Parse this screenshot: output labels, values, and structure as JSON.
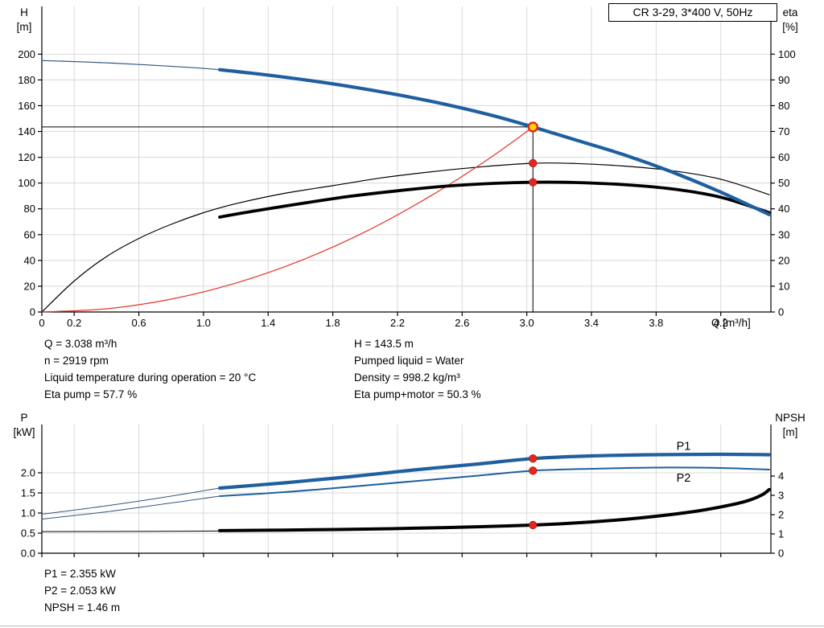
{
  "title_box": "CR 3-29, 3*400 V, 50Hz",
  "info_top": {
    "left": [
      "Q = 3.038 m³/h",
      "n = 2919 rpm",
      "Liquid temperature during operation = 20 °C",
      "Eta pump = 57.7 %"
    ],
    "right": [
      "H = 143.5 m",
      "Pumped liquid = Water",
      "Density = 998.2 kg/m³",
      "Eta pump+motor = 50.3 %"
    ]
  },
  "info_bottom": [
    "P1 = 2.355 kW",
    "P2 = 2.053 kW",
    "NPSH = 1.46 m"
  ],
  "colors": {
    "blue": "#1f5fa0",
    "navy_thin": "#33557f",
    "black": "#000000",
    "red": "#e5342b",
    "marker_red": "#e8251d",
    "marker_yellow": "#ffd800",
    "grid": "#d9d9d9",
    "axis": "#000000"
  },
  "chart_data": [
    {
      "type": "line",
      "title": "CR 3-29, 3*400 V, 50Hz",
      "x_axis": {
        "label": "Q [m³/h]",
        "min": 0,
        "max": 4.51,
        "ticks": [
          0,
          0.2,
          0.6,
          1.0,
          1.4,
          1.8,
          2.2,
          2.6,
          3.0,
          3.4,
          3.8,
          4.2
        ],
        "labels": [
          "0",
          "0.2",
          "0.6",
          "1.0",
          "1.4",
          "1.8",
          "2.2",
          "2.6",
          "3.0",
          "3.4",
          "3.8",
          "4.2"
        ]
      },
      "y_left": {
        "label": "H [m]",
        "min": 0,
        "max": 237,
        "ticks": [
          0,
          20,
          40,
          60,
          80,
          100,
          120,
          140,
          160,
          180,
          200
        ],
        "labels": [
          "0",
          "20",
          "40",
          "60",
          "80",
          "100",
          "120",
          "140",
          "160",
          "180",
          "200"
        ]
      },
      "y_right": {
        "label": "eta [%]",
        "min": 0,
        "max": 118.5,
        "ticks": [
          0,
          10,
          20,
          30,
          40,
          50,
          60,
          70,
          80,
          90,
          100
        ],
        "labels": [
          "0",
          "10",
          "20",
          "30",
          "40",
          "50",
          "60",
          "70",
          "80",
          "90",
          "100"
        ]
      },
      "crosshair": {
        "q": 3.038,
        "v": 143.5
      },
      "series": [
        {
          "name": "head-curve-full",
          "axis": "left",
          "color": "navy_thin",
          "width": 1.2,
          "points": [
            [
              0,
              195
            ],
            [
              0.3,
              193.8
            ],
            [
              0.6,
              192
            ],
            [
              0.9,
              189.8
            ],
            [
              1.1,
              187.9
            ],
            [
              1.3,
              185.2
            ],
            [
              1.6,
              180.5
            ],
            [
              1.9,
              175
            ],
            [
              2.2,
              168.5
            ],
            [
              2.5,
              161
            ],
            [
              2.8,
              152
            ],
            [
              3.038,
              143.5
            ],
            [
              3.3,
              133.5
            ],
            [
              3.6,
              122
            ],
            [
              3.9,
              108.5
            ],
            [
              4.2,
              93
            ],
            [
              4.5,
              75.5
            ]
          ]
        },
        {
          "name": "eta-pump-curve",
          "axis": "right",
          "color": "black",
          "width": 1.2,
          "points": [
            [
              0,
              0
            ],
            [
              0.2,
              12
            ],
            [
              0.4,
              21.5
            ],
            [
              0.6,
              28.5
            ],
            [
              0.8,
              34
            ],
            [
              1,
              38.5
            ],
            [
              1.2,
              42
            ],
            [
              1.5,
              46
            ],
            [
              1.8,
              49
            ],
            [
              2.1,
              52
            ],
            [
              2.4,
              54.3
            ],
            [
              2.7,
              56.2
            ],
            [
              3.038,
              57.7
            ],
            [
              3.3,
              57.6
            ],
            [
              3.6,
              56.6
            ],
            [
              3.9,
              54.8
            ],
            [
              4.2,
              51.5
            ],
            [
              4.5,
              45.5
            ]
          ]
        },
        {
          "name": "system-resistance-curve",
          "axis": "left",
          "color": "red",
          "width": 1.2,
          "points": [
            [
              0,
              0
            ],
            [
              0.4,
              2.5
            ],
            [
              0.8,
              10
            ],
            [
              1.2,
              22.4
            ],
            [
              1.6,
              39.8
            ],
            [
              2,
              62.2
            ],
            [
              2.4,
              89.6
            ],
            [
              2.7,
              113.4
            ],
            [
              2.9,
              130.8
            ],
            [
              3.038,
              143.5
            ]
          ]
        },
        {
          "name": "eta-pump-motor-curve",
          "axis": "right",
          "color": "black",
          "width": 3.8,
          "points": [
            [
              1.1,
              36.8
            ],
            [
              1.3,
              39
            ],
            [
              1.6,
              42
            ],
            [
              1.9,
              44.8
            ],
            [
              2.2,
              47
            ],
            [
              2.5,
              48.8
            ],
            [
              2.8,
              49.9
            ],
            [
              3.038,
              50.3
            ],
            [
              3.3,
              50.2
            ],
            [
              3.6,
              49.4
            ],
            [
              3.9,
              47.7
            ],
            [
              4.2,
              44.5
            ],
            [
              4.5,
              38.5
            ]
          ]
        },
        {
          "name": "head-curve-duty-range",
          "axis": "left",
          "color": "blue",
          "width": 4.2,
          "points": [
            [
              1.1,
              187.9
            ],
            [
              1.3,
              185.2
            ],
            [
              1.6,
              180.5
            ],
            [
              1.9,
              175
            ],
            [
              2.2,
              168.5
            ],
            [
              2.5,
              161
            ],
            [
              2.8,
              152
            ],
            [
              3.038,
              143.5
            ],
            [
              3.3,
              133.5
            ],
            [
              3.6,
              122
            ],
            [
              3.9,
              108.5
            ],
            [
              4.2,
              93
            ],
            [
              4.5,
              75.5
            ]
          ]
        }
      ],
      "markers": [
        {
          "name": "duty-point",
          "axis": "left",
          "q": 3.038,
          "v": 143.5,
          "style": "yellow"
        },
        {
          "name": "eta-pump-point",
          "axis": "right",
          "q": 3.038,
          "v": 57.7,
          "style": "red"
        },
        {
          "name": "eta-pump-motor-point",
          "axis": "right",
          "q": 3.038,
          "v": 50.3,
          "style": "red"
        }
      ],
      "annotations": []
    },
    {
      "type": "line",
      "title": "",
      "x_axis": {
        "label": "",
        "min": 0,
        "max": 4.51,
        "ticks": [
          0,
          0.2,
          0.6,
          1.0,
          1.4,
          1.8,
          2.2,
          2.6,
          3.0,
          3.4,
          3.8,
          4.2
        ],
        "labels": []
      },
      "y_left": {
        "label": "P [kW]",
        "min": 0,
        "max": 3.2,
        "ticks": [
          0,
          0.5,
          1.0,
          1.5,
          2.0
        ],
        "labels": [
          "0.0",
          "0.5",
          "1.0",
          "1.5",
          "2.0"
        ]
      },
      "y_right": {
        "label": "NPSH [m]",
        "min": 0,
        "max": 6.67,
        "ticks": [
          0,
          1,
          2,
          3,
          4
        ],
        "labels": [
          "0",
          "1",
          "2",
          "3",
          "4"
        ]
      },
      "series": [
        {
          "name": "p1-extension",
          "axis": "left",
          "color": "navy_thin",
          "width": 1,
          "points": [
            [
              0,
              0.97
            ],
            [
              0.4,
              1.18
            ],
            [
              0.8,
              1.42
            ],
            [
              1.1,
              1.62
            ]
          ]
        },
        {
          "name": "p2-extension",
          "axis": "left",
          "color": "navy_thin",
          "width": 1,
          "points": [
            [
              0,
              0.85
            ],
            [
              0.4,
              1.03
            ],
            [
              0.8,
              1.25
            ],
            [
              1.1,
              1.42
            ]
          ]
        },
        {
          "name": "npsh-extension",
          "axis": "right",
          "color": "black",
          "width": 1,
          "points": [
            [
              0,
              1.12
            ],
            [
              0.6,
              1.13
            ],
            [
              1.1,
              1.15
            ]
          ]
        },
        {
          "name": "p2-curve",
          "axis": "left",
          "color": "blue",
          "width": 2,
          "points": [
            [
              1.1,
              1.42
            ],
            [
              1.5,
              1.52
            ],
            [
              1.9,
              1.65
            ],
            [
              2.3,
              1.79
            ],
            [
              2.7,
              1.93
            ],
            [
              3.038,
              2.053
            ],
            [
              3.4,
              2.1
            ],
            [
              3.8,
              2.13
            ],
            [
              4.2,
              2.12
            ],
            [
              4.5,
              2.08
            ]
          ]
        },
        {
          "name": "npsh-curve",
          "axis": "right",
          "color": "black",
          "width": 4,
          "points": [
            [
              1.1,
              1.17
            ],
            [
              1.5,
              1.2
            ],
            [
              2,
              1.25
            ],
            [
              2.5,
              1.33
            ],
            [
              3.038,
              1.46
            ],
            [
              3.4,
              1.62
            ],
            [
              3.7,
              1.83
            ],
            [
              4,
              2.12
            ],
            [
              4.2,
              2.4
            ],
            [
              4.35,
              2.68
            ],
            [
              4.45,
              3.0
            ],
            [
              4.5,
              3.3
            ]
          ]
        },
        {
          "name": "p1-curve",
          "axis": "left",
          "color": "blue",
          "width": 4.2,
          "points": [
            [
              1.1,
              1.62
            ],
            [
              1.5,
              1.75
            ],
            [
              1.9,
              1.9
            ],
            [
              2.3,
              2.07
            ],
            [
              2.7,
              2.22
            ],
            [
              3.038,
              2.355
            ],
            [
              3.4,
              2.42
            ],
            [
              3.8,
              2.45
            ],
            [
              4.2,
              2.46
            ],
            [
              4.5,
              2.45
            ]
          ]
        }
      ],
      "markers": [
        {
          "name": "p1-point",
          "axis": "left",
          "q": 3.038,
          "v": 2.355,
          "style": "red"
        },
        {
          "name": "p2-point",
          "axis": "left",
          "q": 3.038,
          "v": 2.053,
          "style": "red"
        },
        {
          "name": "npsh-point",
          "axis": "right",
          "q": 3.038,
          "v": 1.46,
          "style": "red"
        }
      ],
      "annotations": [
        {
          "text": "P1",
          "x": 3.97,
          "y": 2.57,
          "axis": "left",
          "color": "blue"
        },
        {
          "text": "P2",
          "x": 3.97,
          "y": 1.78,
          "axis": "left",
          "color": "blue"
        }
      ]
    }
  ]
}
